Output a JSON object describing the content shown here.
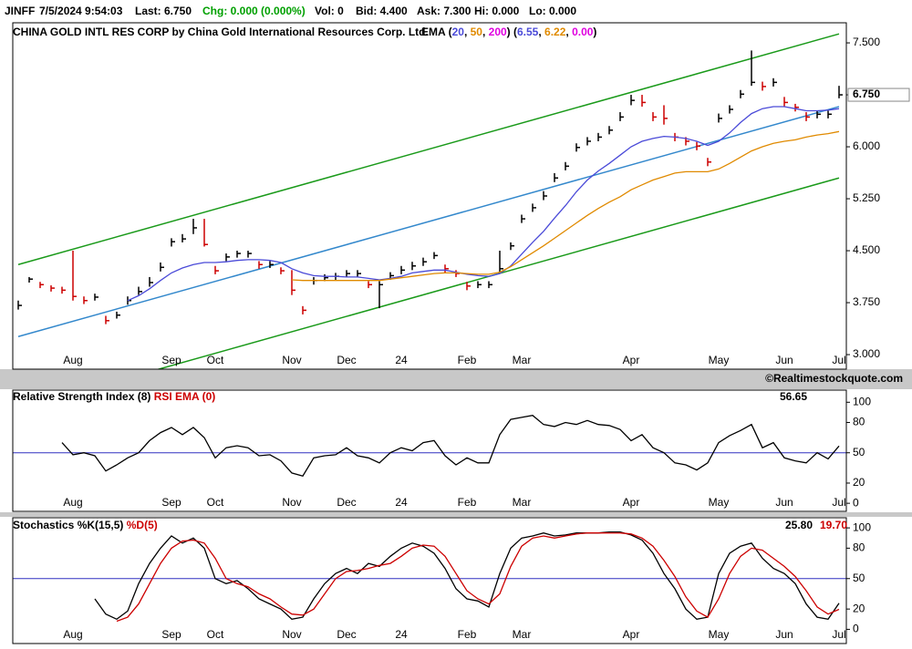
{
  "quote": [
    "JINFF",
    "7/5/2024 9:54:03",
    "Last: 6.750",
    "Chg: 0.000 (0.000%)",
    "Vol: 0",
    "Bid: 4.400",
    "Ask: 7.300",
    "Hi: 0.000",
    "Lo: 0.000"
  ],
  "copyright": "©Realtimestockquote.com",
  "chart_data": [
    {
      "type": "ohlc",
      "title": "CHINA GOLD INTL RES CORP by China Gold International Resources Corp. Ltd.",
      "ema_label": "EMA",
      "categories": [
        null,
        null,
        null,
        null,
        null,
        "Aug",
        null,
        null,
        null,
        null,
        null,
        null,
        null,
        null,
        "Sep",
        null,
        null,
        null,
        "Oct",
        null,
        null,
        null,
        null,
        null,
        null,
        "Nov",
        null,
        null,
        null,
        null,
        "Dec",
        null,
        null,
        null,
        null,
        "24",
        null,
        null,
        null,
        null,
        null,
        "Feb",
        null,
        null,
        null,
        null,
        "Mar",
        null,
        null,
        null,
        null,
        null,
        null,
        null,
        null,
        null,
        "Apr",
        null,
        null,
        null,
        null,
        null,
        null,
        null,
        "May",
        null,
        null,
        null,
        null,
        null,
        "Jun",
        null,
        null,
        null,
        null,
        "Jul"
      ],
      "high": [
        3.78,
        4.12,
        4.05,
        4.0,
        3.98,
        4.5,
        3.84,
        3.88,
        3.56,
        3.62,
        3.84,
        3.98,
        4.12,
        4.33,
        4.68,
        4.74,
        4.96,
        4.96,
        4.28,
        4.46,
        4.5,
        4.5,
        4.35,
        4.35,
        4.26,
        4.22,
        3.7,
        4.12,
        4.16,
        4.18,
        4.22,
        4.22,
        4.06,
        4.06,
        4.19,
        4.28,
        4.34,
        4.4,
        4.48,
        4.3,
        4.22,
        4.05,
        4.06,
        4.06,
        4.5,
        4.62,
        5.02,
        5.18,
        5.36,
        5.62,
        5.78,
        6.05,
        6.14,
        6.2,
        6.3,
        6.5,
        6.75,
        6.75,
        6.5,
        6.6,
        6.2,
        6.14,
        6.07,
        5.84,
        6.48,
        6.6,
        6.82,
        7.39,
        6.94,
        6.99,
        6.72,
        6.62,
        6.5,
        6.52,
        6.52,
        6.88
      ],
      "low": [
        3.65,
        4.04,
        3.96,
        3.91,
        3.88,
        3.78,
        3.73,
        3.78,
        3.44,
        3.52,
        3.72,
        3.86,
        3.98,
        4.2,
        4.56,
        4.62,
        4.74,
        4.56,
        4.16,
        4.35,
        4.4,
        4.4,
        4.24,
        4.25,
        4.16,
        3.86,
        3.58,
        4.01,
        4.06,
        4.08,
        4.12,
        4.12,
        3.96,
        3.67,
        4.08,
        4.16,
        4.22,
        4.28,
        4.38,
        4.18,
        4.12,
        3.93,
        3.96,
        3.96,
        4.18,
        4.51,
        4.9,
        5.06,
        5.23,
        5.49,
        5.66,
        5.93,
        6.02,
        6.08,
        6.18,
        6.37,
        6.6,
        6.58,
        6.37,
        6.32,
        6.08,
        6.02,
        5.95,
        5.72,
        6.35,
        6.48,
        6.7,
        6.88,
        6.81,
        6.87,
        6.58,
        6.51,
        6.37,
        6.41,
        6.41,
        6.7
      ],
      "close": [
        3.71,
        4.09,
        4.01,
        3.96,
        3.93,
        3.84,
        3.78,
        3.83,
        3.49,
        3.57,
        3.78,
        3.91,
        4.04,
        4.26,
        4.63,
        4.67,
        4.83,
        4.59,
        4.21,
        4.41,
        4.46,
        4.46,
        4.3,
        4.3,
        4.21,
        3.93,
        3.64,
        4.07,
        4.11,
        4.13,
        4.17,
        4.17,
        4.01,
        4.01,
        4.14,
        4.22,
        4.28,
        4.34,
        4.43,
        4.24,
        4.17,
        3.99,
        4.01,
        4.01,
        4.24,
        4.57,
        4.96,
        5.12,
        5.29,
        5.55,
        5.72,
        5.99,
        6.08,
        6.14,
        6.24,
        6.43,
        6.67,
        6.64,
        6.43,
        6.41,
        6.14,
        6.08,
        6.01,
        5.78,
        6.41,
        6.54,
        6.76,
        6.93,
        6.87,
        6.93,
        6.64,
        6.57,
        6.43,
        6.47,
        6.47,
        6.75
      ],
      "up_color": "#000000",
      "down_color": "#cc0000",
      "last_label": "6.750",
      "series": [
        {
          "name": "20",
          "color": "#4a4ad8",
          "value_label": "6.55",
          "values": [
            null,
            null,
            null,
            null,
            null,
            null,
            null,
            null,
            null,
            null,
            3.78,
            3.85,
            3.95,
            4.07,
            4.18,
            4.25,
            4.3,
            4.33,
            4.33,
            4.34,
            4.36,
            4.37,
            4.37,
            4.36,
            4.33,
            4.24,
            4.18,
            4.14,
            4.13,
            4.13,
            4.12,
            4.12,
            4.1,
            4.08,
            4.1,
            4.13,
            4.18,
            4.2,
            4.22,
            4.22,
            4.19,
            4.16,
            4.14,
            4.13,
            4.17,
            4.28,
            4.45,
            4.62,
            4.78,
            4.97,
            5.15,
            5.35,
            5.52,
            5.65,
            5.76,
            5.88,
            6.0,
            6.08,
            6.12,
            6.15,
            6.14,
            6.12,
            6.08,
            6.02,
            6.08,
            6.2,
            6.35,
            6.48,
            6.55,
            6.58,
            6.58,
            6.55,
            6.52,
            6.52,
            6.53,
            6.55
          ]
        },
        {
          "name": "50",
          "color": "#e08a00",
          "value_label": "6.22",
          "values": [
            null,
            null,
            null,
            null,
            null,
            null,
            null,
            null,
            null,
            null,
            null,
            null,
            null,
            null,
            null,
            null,
            null,
            null,
            null,
            null,
            null,
            null,
            null,
            null,
            null,
            4.08,
            4.07,
            4.07,
            4.07,
            4.07,
            4.07,
            4.07,
            4.07,
            4.07,
            4.09,
            4.11,
            4.13,
            4.15,
            4.17,
            4.18,
            4.18,
            4.17,
            4.16,
            4.16,
            4.19,
            4.27,
            4.37,
            4.47,
            4.57,
            4.68,
            4.79,
            4.9,
            5.01,
            5.11,
            5.2,
            5.28,
            5.38,
            5.45,
            5.52,
            5.57,
            5.62,
            5.64,
            5.64,
            5.64,
            5.68,
            5.76,
            5.85,
            5.94,
            6.0,
            6.05,
            6.08,
            6.1,
            6.14,
            6.17,
            6.19,
            6.22
          ]
        },
        {
          "name": "200",
          "color": "#e000e0",
          "value_label": "0.00"
        }
      ],
      "trendlines": [
        {
          "color": "#1a9a1a",
          "start": 4.3,
          "end": 7.63
        },
        {
          "color": "#3388cc",
          "start": 3.26,
          "end": 6.58
        },
        {
          "color": "#1a9a1a",
          "start": 2.22,
          "end": 5.55
        }
      ],
      "ylim": [
        2.79,
        7.79
      ],
      "yticks": [
        {
          "value": 3.0,
          "label": "3.000"
        },
        {
          "value": 3.75,
          "label": "3.750"
        },
        {
          "value": 4.5,
          "label": "4.500"
        },
        {
          "value": 5.25,
          "label": "5.250"
        },
        {
          "value": 6.0,
          "label": "6.000"
        },
        {
          "value": 6.75,
          "label": "6.750"
        },
        {
          "value": 7.5,
          "label": "7.500"
        }
      ]
    },
    {
      "type": "line",
      "title": "Relative Strength Index (8)",
      "overlay_title": "RSI EMA (0)",
      "overlay_color": "#cc0000",
      "categories": [
        null,
        null,
        null,
        null,
        null,
        "Aug",
        null,
        null,
        null,
        null,
        null,
        null,
        null,
        null,
        "Sep",
        null,
        null,
        null,
        "Oct",
        null,
        null,
        null,
        null,
        null,
        null,
        "Nov",
        null,
        null,
        null,
        null,
        "Dec",
        null,
        null,
        null,
        null,
        "24",
        null,
        null,
        null,
        null,
        null,
        "Feb",
        null,
        null,
        null,
        null,
        "Mar",
        null,
        null,
        null,
        null,
        null,
        null,
        null,
        null,
        null,
        "Apr",
        null,
        null,
        null,
        null,
        null,
        null,
        null,
        "May",
        null,
        null,
        null,
        null,
        null,
        "Jun",
        null,
        null,
        null,
        null,
        "Jul"
      ],
      "series": [
        {
          "color": "#000000",
          "value_label": "56.65",
          "values": [
            null,
            null,
            null,
            null,
            60,
            48,
            50,
            47,
            32,
            38,
            45,
            50,
            62,
            70,
            75,
            68,
            75,
            65,
            45,
            55,
            57,
            55,
            47,
            48,
            42,
            30,
            27,
            45,
            47,
            48,
            55,
            47,
            45,
            40,
            50,
            55,
            52,
            60,
            62,
            47,
            38,
            45,
            40,
            40,
            68,
            83,
            85,
            87,
            78,
            76,
            80,
            78,
            82,
            78,
            77,
            73,
            62,
            68,
            55,
            50,
            40,
            38,
            33,
            40,
            60,
            67,
            72,
            78,
            55,
            60,
            45,
            42,
            40,
            50,
            44,
            56.65
          ]
        }
      ],
      "reference_line": 50,
      "reference_color": "#3030c0",
      "ylim": [
        -8,
        112
      ],
      "yticks": [
        0,
        20,
        50,
        80,
        100
      ]
    },
    {
      "type": "line",
      "title": "Stochastics",
      "categories": [
        null,
        null,
        null,
        null,
        null,
        "Aug",
        null,
        null,
        null,
        null,
        null,
        null,
        null,
        null,
        "Sep",
        null,
        null,
        null,
        "Oct",
        null,
        null,
        null,
        null,
        null,
        null,
        "Nov",
        null,
        null,
        null,
        null,
        "Dec",
        null,
        null,
        null,
        null,
        "24",
        null,
        null,
        null,
        null,
        null,
        "Feb",
        null,
        null,
        null,
        null,
        "Mar",
        null,
        null,
        null,
        null,
        null,
        null,
        null,
        null,
        null,
        "Apr",
        null,
        null,
        null,
        null,
        null,
        null,
        null,
        "May",
        null,
        null,
        null,
        null,
        null,
        "Jun",
        null,
        null,
        null,
        null,
        "Jul"
      ],
      "series": [
        {
          "name": "%K(15,5)",
          "color": "#000000",
          "value_label": "25.80",
          "values": [
            null,
            null,
            null,
            null,
            null,
            null,
            null,
            30,
            15,
            10,
            18,
            45,
            65,
            80,
            92,
            85,
            90,
            80,
            50,
            45,
            48,
            40,
            30,
            25,
            20,
            10,
            12,
            30,
            45,
            55,
            60,
            55,
            65,
            62,
            72,
            80,
            85,
            82,
            75,
            60,
            40,
            30,
            28,
            22,
            55,
            80,
            90,
            92,
            95,
            92,
            93,
            95,
            95,
            95,
            96,
            96,
            93,
            88,
            75,
            55,
            40,
            20,
            10,
            12,
            55,
            75,
            82,
            85,
            70,
            60,
            55,
            45,
            25,
            12,
            10,
            25.8
          ]
        },
        {
          "name": "%D(5)",
          "color": "#cc0000",
          "value_label": "19.70",
          "values": [
            null,
            null,
            null,
            null,
            null,
            null,
            null,
            null,
            null,
            8,
            12,
            25,
            45,
            65,
            80,
            87,
            88,
            85,
            70,
            50,
            45,
            42,
            35,
            30,
            22,
            15,
            14,
            20,
            35,
            50,
            57,
            58,
            60,
            63,
            65,
            72,
            80,
            83,
            82,
            72,
            55,
            38,
            30,
            25,
            35,
            62,
            82,
            90,
            92,
            90,
            92,
            94,
            95,
            95,
            95,
            95,
            94,
            90,
            82,
            68,
            52,
            32,
            18,
            12,
            30,
            55,
            72,
            80,
            78,
            70,
            62,
            52,
            38,
            22,
            15,
            19.7
          ]
        }
      ],
      "reference_line": 50,
      "reference_color": "#3030c0",
      "ylim": [
        -14,
        110
      ],
      "yticks": [
        0,
        20,
        50,
        80,
        100
      ]
    }
  ]
}
